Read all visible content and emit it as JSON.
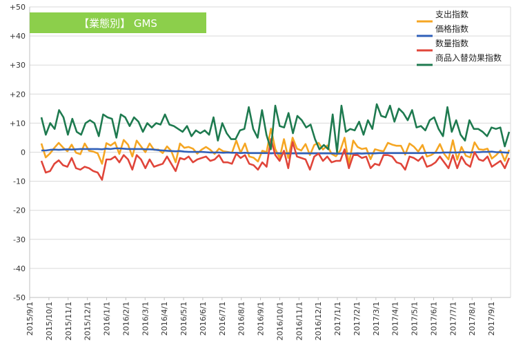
{
  "chart_data": {
    "type": "line",
    "title": "【業態別】 GMS",
    "title_box_color": "#8ccf4b",
    "y_ticks": [
      "+50",
      "+40",
      "+30",
      "+20",
      "+10",
      "0",
      "-10",
      "-20",
      "-30",
      "-40",
      "-50"
    ],
    "ylim": [
      -50,
      50
    ],
    "x_labels": [
      "2015/9/1",
      "2015/10/1",
      "2015/11/1",
      "2015/12/1",
      "2016/1/1",
      "2016/2/1",
      "2016/3/1",
      "2016/4/1",
      "2016/5/1",
      "2016/6/1",
      "2016/7/1",
      "2016/8/1",
      "2016/9/1",
      "2016/10/1",
      "2016/11/1",
      "2016/12/1",
      "2017/1/1",
      "2017/2/1",
      "2017/3/1",
      "2017/4/1",
      "2017/5/1",
      "2017/6/1",
      "2017/7/1",
      "2017/8/1",
      "2017/9/1"
    ],
    "grid": true,
    "legend_position": "top-right",
    "series": [
      {
        "name": "支出指数",
        "color": "#f5a623",
        "values": [
          3.0,
          -1.8,
          -0.4,
          1.5,
          3.2,
          1.6,
          0.3,
          2.6,
          -0.2,
          -0.7,
          3.0,
          0.5,
          0.2,
          -0.4,
          -4.0,
          3.1,
          2.3,
          3.4,
          -0.6,
          4.2,
          2.6,
          -1.5,
          4.0,
          2.0,
          0.0,
          3.0,
          0.8,
          0.9,
          -0.3,
          2.0,
          0.4,
          -3.5,
          3.0,
          1.5,
          1.8,
          1.2,
          -0.5,
          0.9,
          1.8,
          0.8,
          -0.6,
          1.2,
          0.3,
          0.1,
          -0.2,
          4.0,
          -0.2,
          3.0,
          -1.5,
          -1.9,
          -3.2,
          0.5,
          0.0,
          8.1,
          1.1,
          -2.0,
          4.5,
          -2.0,
          5.0,
          1.2,
          0.6,
          2.8,
          -1.0,
          2.5,
          3.2,
          0.9,
          2.3,
          -0.6,
          -1.4,
          0.6,
          5.0,
          -4.0,
          4.0,
          1.8,
          1.1,
          1.4,
          -2.4,
          1.0,
          0.6,
          0.3,
          3.2,
          2.6,
          2.2,
          2.2,
          -0.8,
          3.0,
          1.9,
          0.2,
          2.5,
          -1.5,
          -1.0,
          0.0,
          2.8,
          -0.6,
          -2.5,
          4.1,
          -2.6,
          1.8,
          -1.2,
          -1.8,
          3.4,
          1.0,
          0.8,
          1.2,
          -2.2,
          -1.0,
          0.6,
          -3.0,
          0.8
        ]
      },
      {
        "name": "価格指数",
        "color": "#2f5fb8",
        "values": [
          0.6,
          0.6,
          0.8,
          0.9,
          0.8,
          0.9,
          1.0,
          0.9,
          1.0,
          1.1,
          1.1,
          1.1,
          1.1,
          1.1,
          1.0,
          1.2,
          1.1,
          1.3,
          1.3,
          1.2,
          1.1,
          1.1,
          1.1,
          1.1,
          1.0,
          1.0,
          0.9,
          0.7,
          0.6,
          0.5,
          0.4,
          0.3,
          0.4,
          0.2,
          0.1,
          0.1,
          0.1,
          0.1,
          0.0,
          -0.1,
          -0.1,
          -0.1,
          -0.2,
          -0.1,
          -0.2,
          -0.2,
          -0.3,
          -0.2,
          -0.3,
          -0.3,
          -0.3,
          -0.3,
          -0.3,
          -0.4,
          -0.3,
          -0.4,
          -0.4,
          -0.4,
          -0.4,
          -0.4,
          -0.4,
          -0.4,
          -0.4,
          -0.4,
          -0.4,
          -0.4,
          -0.4,
          -0.4,
          -0.5,
          -0.5,
          -0.4,
          -0.5,
          -0.5,
          -0.4,
          -0.5,
          -0.4,
          -0.4,
          -0.4,
          -0.3,
          -0.3,
          -0.3,
          -0.3,
          -0.3,
          -0.3,
          -0.3,
          -0.3,
          -0.3,
          -0.3,
          -0.3,
          -0.2,
          -0.2,
          -0.2,
          -0.2,
          -0.1,
          -0.1,
          -0.1,
          -0.1,
          0.0,
          0.0,
          -0.1,
          0.0,
          0.0,
          0.1,
          0.1,
          0.2,
          0.0,
          0.0,
          -0.1,
          -0.2
        ]
      },
      {
        "name": "数量指数",
        "color": "#e0453a",
        "values": [
          -3.0,
          -7.0,
          -6.5,
          -4.0,
          -2.8,
          -4.5,
          -5.0,
          -2.0,
          -5.5,
          -6.0,
          -5.0,
          -5.5,
          -6.5,
          -7.0,
          -9.5,
          -2.5,
          -2.5,
          -1.5,
          -3.5,
          -1.0,
          -2.5,
          -6.0,
          -1.0,
          -2.5,
          -5.5,
          -2.5,
          -5.0,
          -4.5,
          -4.0,
          -1.5,
          -4.0,
          -6.5,
          -2.0,
          -2.5,
          -1.5,
          -3.5,
          -2.5,
          -2.0,
          -1.5,
          -3.0,
          -2.5,
          -1.0,
          -3.5,
          -3.5,
          -4.0,
          -0.5,
          -2.0,
          -1.0,
          -4.0,
          -4.5,
          -6.0,
          -3.5,
          -5.0,
          4.5,
          -1.0,
          -3.0,
          0.5,
          -5.5,
          3.5,
          -1.5,
          -2.0,
          -2.5,
          -6.0,
          -1.5,
          -0.5,
          -3.0,
          -1.5,
          -3.5,
          -3.0,
          -3.0,
          1.0,
          -5.5,
          -1.0,
          -1.0,
          -2.0,
          -1.5,
          -5.5,
          -4.0,
          -4.5,
          -1.0,
          -1.0,
          -1.5,
          -3.5,
          -4.0,
          -6.0,
          -1.5,
          -2.0,
          -3.0,
          -1.5,
          -5.0,
          -4.5,
          -3.5,
          -1.5,
          -3.5,
          -5.5,
          -1.0,
          -5.5,
          -1.5,
          -4.0,
          -5.0,
          0.0,
          -2.5,
          -3.0,
          -1.5,
          -5.0,
          -4.0,
          -3.0,
          -5.5,
          -2.0
        ]
      },
      {
        "name": "商品入替効果指数",
        "color": "#1e7a4f",
        "values": [
          12.0,
          6.0,
          10.0,
          8.0,
          14.5,
          12.0,
          6.0,
          11.5,
          7.0,
          6.0,
          10.0,
          11.0,
          10.0,
          5.5,
          13.0,
          12.0,
          11.5,
          5.0,
          13.0,
          12.0,
          9.0,
          12.0,
          10.5,
          7.0,
          10.0,
          8.5,
          10.0,
          9.5,
          13.0,
          9.5,
          9.0,
          8.0,
          7.0,
          9.0,
          5.5,
          7.5,
          6.5,
          7.5,
          6.0,
          12.0,
          4.0,
          10.0,
          6.5,
          4.5,
          4.5,
          7.5,
          8.0,
          15.5,
          8.0,
          5.0,
          14.5,
          6.0,
          1.0,
          16.0,
          9.0,
          8.5,
          13.5,
          6.5,
          12.5,
          11.0,
          8.5,
          9.5,
          4.5,
          1.0,
          2.5,
          1.0,
          13.0,
          0.0,
          16.0,
          7.0,
          8.0,
          7.5,
          10.5,
          6.0,
          11.0,
          8.0,
          16.5,
          12.5,
          12.0,
          16.0,
          10.5,
          15.0,
          13.5,
          11.0,
          14.5,
          8.5,
          9.0,
          7.5,
          11.0,
          12.0,
          8.0,
          5.5,
          15.5,
          7.0,
          11.0,
          6.0,
          4.0,
          11.0,
          8.0,
          8.0,
          7.0,
          5.5,
          8.5,
          8.0,
          8.5,
          2.0,
          7.0
        ]
      }
    ]
  }
}
